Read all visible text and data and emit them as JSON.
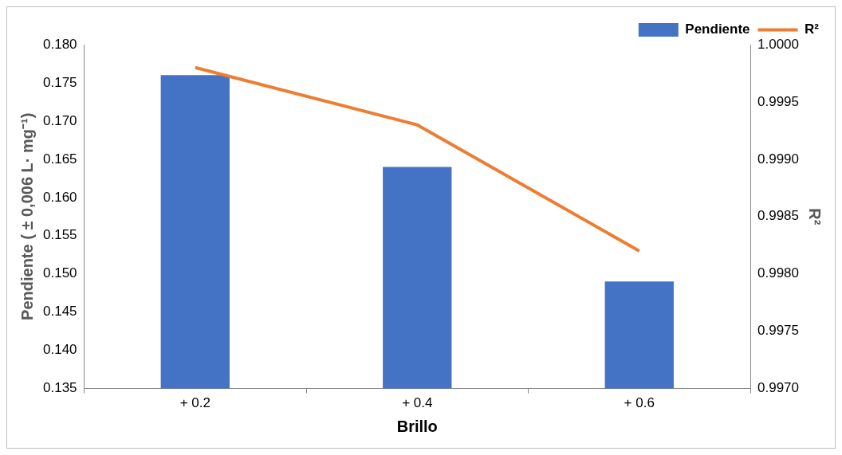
{
  "chart_data": {
    "type": "bar",
    "xlabel": "Brillo",
    "ylabel": "Pendiente ( ± 0,006 L· mg⁻¹)",
    "y2label": "R²",
    "categories": [
      "+ 0.2",
      "+ 0.4",
      "+ 0.6"
    ],
    "series": [
      {
        "name": "Pendiente",
        "color": "#4472c4",
        "values": [
          0.176,
          0.164,
          0.149
        ]
      },
      {
        "name": "R²",
        "type": "line",
        "axis": "y2",
        "color": "#ed7d31",
        "values": [
          0.9998,
          0.9993,
          0.9982
        ]
      }
    ],
    "ylim": [
      0.135,
      0.18
    ],
    "yticks": [
      0.135,
      {
        "value": 0.14,
        "label": "0.140"
      },
      0.145,
      {
        "value": 0.15,
        "label": "0.150"
      },
      0.155,
      {
        "value": 0.16,
        "label": "0.160"
      },
      0.165,
      {
        "value": 0.17,
        "label": "0.170"
      },
      0.175,
      {
        "value": 0.18,
        "label": "0.180"
      }
    ],
    "y2lim": [
      0.997,
      1.0
    ],
    "y2ticks": [
      {
        "value": 0.997,
        "label": "0.9970"
      },
      0.9975,
      {
        "value": 0.998,
        "label": "0.9980"
      },
      0.9985,
      {
        "value": 0.999,
        "label": "0.9990"
      },
      0.9995,
      {
        "value": 1,
        "label": "1.0000"
      }
    ],
    "legend": "top right",
    "grid": false,
    "marker": "none",
    "line_style": "solid"
  }
}
